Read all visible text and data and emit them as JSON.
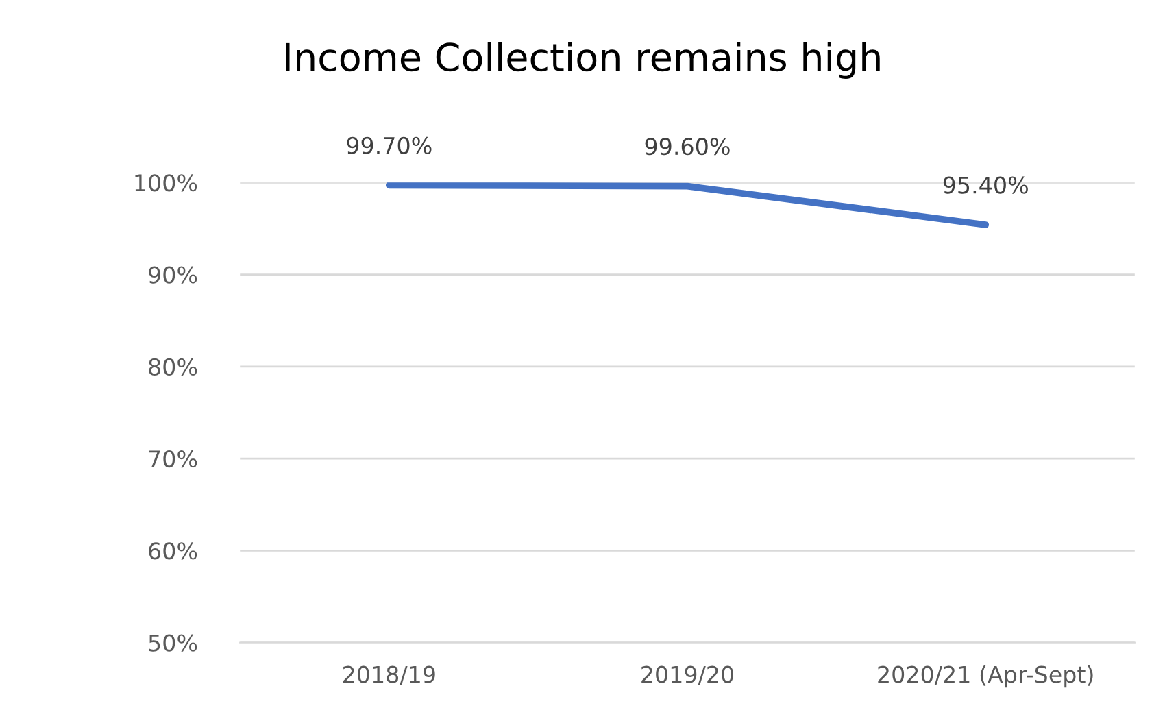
{
  "chart_data": {
    "type": "line",
    "title": "Income Collection remains high",
    "categories": [
      "2018/19",
      "2019/20",
      "2020/21 (Apr-Sept)"
    ],
    "series": [
      {
        "color": "#4472c4",
        "values": [
          99.7,
          99.6,
          95.4
        ],
        "value_labels": [
          "99.70%",
          "99.60%",
          "95.40%"
        ]
      }
    ],
    "ylim": [
      50,
      100
    ],
    "yticks": [
      {
        "value": 50,
        "label": "50%"
      },
      {
        "value": 60,
        "label": "60%"
      },
      {
        "value": 70,
        "label": "70%"
      },
      {
        "value": 80,
        "label": "80%"
      },
      {
        "value": 90,
        "label": "90%"
      },
      {
        "value": 100,
        "label": "100%"
      }
    ],
    "grid": "y",
    "marker": "none",
    "line_style": "solid",
    "legend": false
  }
}
